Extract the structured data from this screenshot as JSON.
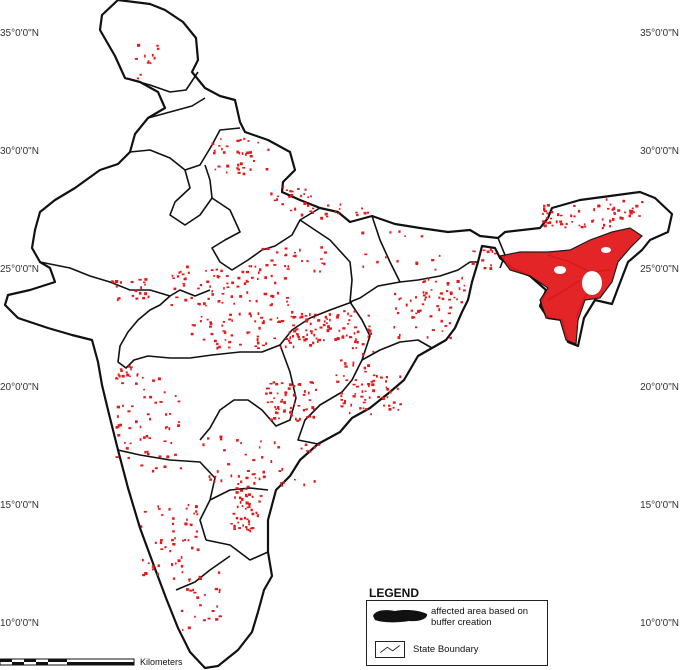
{
  "map": {
    "latitude_labels": [
      {
        "text": "35°0'0\"N",
        "value": 35
      },
      {
        "text": "30°0'0\"N",
        "value": 30
      },
      {
        "text": "25°0'0\"N",
        "value": 25
      },
      {
        "text": "20°0'0\"N",
        "value": 20
      },
      {
        "text": "15°0'0\"N",
        "value": 15
      },
      {
        "text": "10°0'0\"N",
        "value": 10
      }
    ],
    "colors": {
      "affected": "#e31a1c",
      "boundary": "#111111",
      "land": "#ffffff"
    }
  },
  "legend": {
    "title": "LEGEND",
    "affected_label": "affected area based on buffer creation",
    "boundary_label": "State Boundary"
  },
  "scale": {
    "unit_label": "Kilometers"
  }
}
